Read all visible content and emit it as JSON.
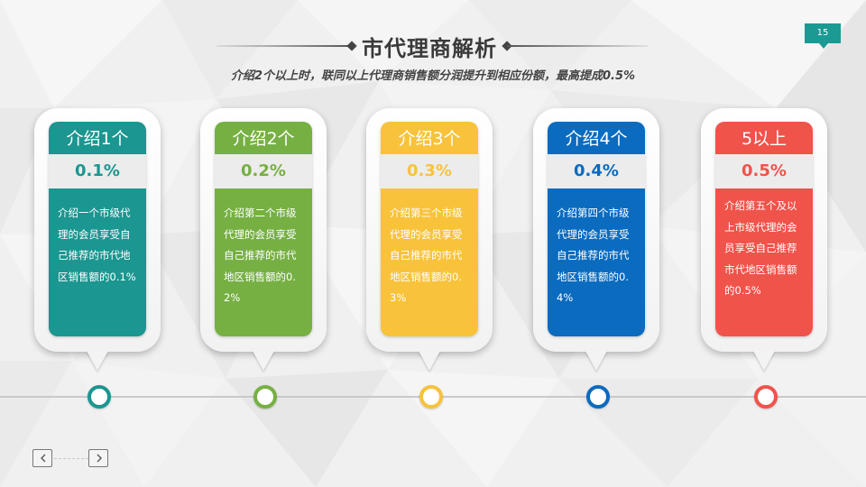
{
  "header": {
    "title": "市代理商解析",
    "subtitle": "介绍2个以上时，联同以上代理商销售额分润提升到相应份额，最高提成0.5%",
    "page_number": "15"
  },
  "colors": {
    "teal": "#1b9690",
    "green": "#76b043",
    "yellow": "#f8c33b",
    "blue": "#0a6bbf",
    "red": "#f0534a",
    "badge": "#1a9a92"
  },
  "cards": [
    {
      "title": "介绍1个",
      "rate": "0.1%",
      "desc": "介绍一个市级代理的会员享受自己推荐的市代地区销售额的0.1%",
      "color": "#1b9690",
      "pct_color": "#1b9690"
    },
    {
      "title": "介绍2个",
      "rate": "0.2%",
      "desc": "介绍第二个市级代理的会员享受自己推荐的市代地区销售额的0.2%",
      "color": "#76b043",
      "pct_color": "#76b043"
    },
    {
      "title": "介绍3个",
      "rate": "0.3%",
      "desc": "介绍第三个市级代理的会员享受自己推荐的市代地区销售额的0.3%",
      "color": "#f8c33b",
      "pct_color": "#f8c33b"
    },
    {
      "title": "介绍4个",
      "rate": "0.4%",
      "desc": "介绍第四个市级代理的会员享受自己推荐的市代地区销售额的0.4%",
      "color": "#0a6bbf",
      "pct_color": "#0a6bbf"
    },
    {
      "title": "5以上",
      "rate": "0.5%",
      "desc": "介绍第五个及以上市级代理的会员享受自己推荐市代地区销售额的0.5%",
      "color": "#f0534a",
      "pct_color": "#f0534a"
    }
  ],
  "nav": {
    "prev_icon": "chevron-left-icon",
    "next_icon": "chevron-right-icon"
  }
}
